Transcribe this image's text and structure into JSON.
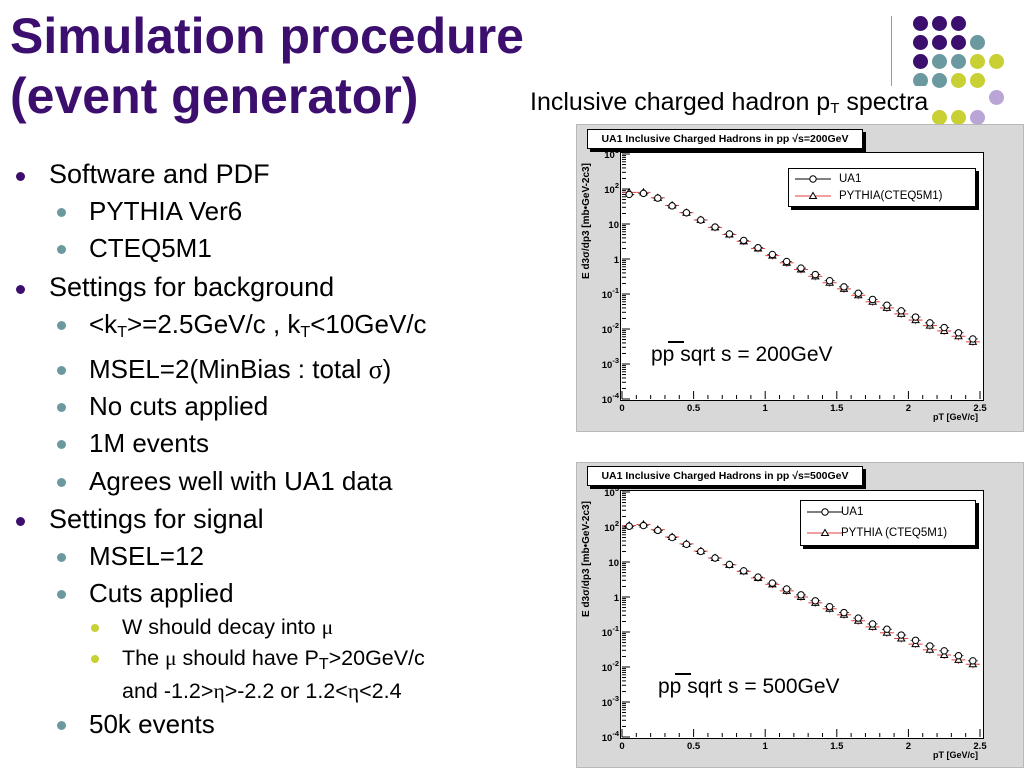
{
  "slide": {
    "title_line1": "Simulation procedure",
    "title_line2": "(event generator)",
    "subtitle": {
      "text": "Inclusive charged hadron p",
      "sub": "T",
      "suffix": " spectra"
    }
  },
  "decoration": {
    "colors": {
      "purple": "#3c0f6e",
      "teal": "#6a9aa0",
      "yellow": "#c8d033",
      "lilac": "#b9a5d6"
    }
  },
  "bullets": {
    "software_pdf": "Software and PDF",
    "pythia": "PYTHIA Ver6",
    "cteq": "CTEQ5M1",
    "bg_settings": "Settings for background",
    "kt": {
      "a": "<k",
      "sub1": "T",
      "b": ">=2.5GeV/c , k",
      "sub2": "T",
      "c": "<10GeV/c"
    },
    "msel2": {
      "a": "MSEL=2(MinBias : total ",
      "sym": "σ",
      "b": ")"
    },
    "no_cuts": "No cuts applied",
    "events_1m": "1M events",
    "agrees": "Agrees well with UA1 data",
    "sig_settings": "Settings for signal",
    "msel12": "MSEL=12",
    "cuts_applied": "Cuts applied",
    "w_decay": {
      "a": "W should decay into ",
      "sym": "μ"
    },
    "mu_pt": {
      "a": "The ",
      "sym": "μ",
      "b": " should have P",
      "sub": "T",
      "c": ">20GeV/c"
    },
    "eta_cut": {
      "a": "and -1.2>",
      "sym1": "η",
      "b": ">-2.2 or 1.2<",
      "sym2": "η",
      "c": "<2.4"
    },
    "events_50k": "50k events"
  },
  "chart_data": [
    {
      "type": "scatter",
      "title": "UA1 Inclusive Charged Hadrons in pp √s=200GeV",
      "xlabel": "pT [GeV/c]",
      "ylabel": "E d3σ/dp3 [mb•GeV-2c3]",
      "xlim": [
        0,
        2.5
      ],
      "ylim": [
        0.0001,
        1000
      ],
      "log_y": true,
      "x_ticks": [
        "0",
        "0.5",
        "1",
        "1.5",
        "2",
        "2.5"
      ],
      "y_ticks": [
        "10-4",
        "10-3",
        "10-2",
        "10-1",
        "1",
        "10",
        "102",
        "103"
      ],
      "legend": [
        "UA1",
        "PYTHIA(CTEQ5M1)"
      ],
      "annotation": "pp sqrt s = 200GeV",
      "series": [
        {
          "name": "UA1",
          "marker": "circle",
          "x": [
            0.05,
            0.15,
            0.25,
            0.35,
            0.45,
            0.55,
            0.65,
            0.75,
            0.85,
            0.95,
            1.05,
            1.15,
            1.25,
            1.35,
            1.45,
            1.55,
            1.65,
            1.75,
            1.85,
            1.95,
            2.05,
            2.15,
            2.25,
            2.35,
            2.45
          ],
          "y": [
            70,
            75,
            55,
            33,
            21,
            13,
            8.2,
            5.2,
            3.4,
            2.1,
            1.35,
            0.85,
            0.55,
            0.36,
            0.24,
            0.16,
            0.105,
            0.07,
            0.048,
            0.033,
            0.022,
            0.015,
            0.011,
            0.0078,
            0.0052
          ]
        },
        {
          "name": "PYTHIA(CTEQ5M1)",
          "marker": "triangle",
          "x": [
            0.05,
            0.15,
            0.25,
            0.35,
            0.45,
            0.55,
            0.65,
            0.75,
            0.85,
            0.95,
            1.05,
            1.15,
            1.25,
            1.35,
            1.45,
            1.55,
            1.65,
            1.75,
            1.85,
            1.95,
            2.05,
            2.15,
            2.25,
            2.35,
            2.45
          ],
          "y": [
            80,
            80,
            56,
            34,
            21,
            13,
            8.0,
            5.0,
            3.2,
            2.0,
            1.25,
            0.78,
            0.5,
            0.32,
            0.21,
            0.14,
            0.092,
            0.06,
            0.04,
            0.027,
            0.018,
            0.0125,
            0.0088,
            0.0062,
            0.0043
          ]
        }
      ]
    },
    {
      "type": "scatter",
      "title": "UA1 Inclusive Charged Hadrons in pp √s=500GeV",
      "xlabel": "pT [GeV/c]",
      "ylabel": "E d3σ/dp3 [mb•GeV-2c3]",
      "xlim": [
        0,
        2.5
      ],
      "ylim": [
        0.0001,
        1000
      ],
      "log_y": true,
      "x_ticks": [
        "0",
        "0.5",
        "1",
        "1.5",
        "2",
        "2.5"
      ],
      "y_ticks": [
        "10-4",
        "10-3",
        "10-2",
        "10-1",
        "1",
        "10",
        "102",
        "103"
      ],
      "legend": [
        "UA1",
        "PYTHIA (CTEQ5M1)"
      ],
      "annotation": "pp sqrt s = 500GeV",
      "series": [
        {
          "name": "UA1",
          "marker": "circle",
          "x": [
            0.05,
            0.15,
            0.25,
            0.35,
            0.45,
            0.55,
            0.65,
            0.75,
            0.85,
            0.95,
            1.05,
            1.15,
            1.25,
            1.35,
            1.45,
            1.55,
            1.65,
            1.75,
            1.85,
            1.95,
            2.05,
            2.15,
            2.25,
            2.35,
            2.45
          ],
          "y": [
            105,
            110,
            80,
            50,
            32,
            20,
            13,
            8.5,
            5.6,
            3.7,
            2.5,
            1.7,
            1.15,
            0.78,
            0.53,
            0.36,
            0.25,
            0.17,
            0.12,
            0.082,
            0.058,
            0.04,
            0.029,
            0.021,
            0.015
          ]
        },
        {
          "name": "PYTHIA (CTEQ5M1)",
          "marker": "triangle",
          "x": [
            0.05,
            0.15,
            0.25,
            0.35,
            0.45,
            0.55,
            0.65,
            0.75,
            0.85,
            0.95,
            1.05,
            1.15,
            1.25,
            1.35,
            1.45,
            1.55,
            1.65,
            1.75,
            1.85,
            1.95,
            2.05,
            2.15,
            2.25,
            2.35,
            2.45
          ],
          "y": [
            110,
            118,
            84,
            52,
            33,
            20.5,
            13,
            8.3,
            5.4,
            3.5,
            2.3,
            1.5,
            1.0,
            0.68,
            0.46,
            0.31,
            0.21,
            0.14,
            0.095,
            0.065,
            0.045,
            0.031,
            0.022,
            0.016,
            0.012
          ]
        }
      ]
    }
  ]
}
